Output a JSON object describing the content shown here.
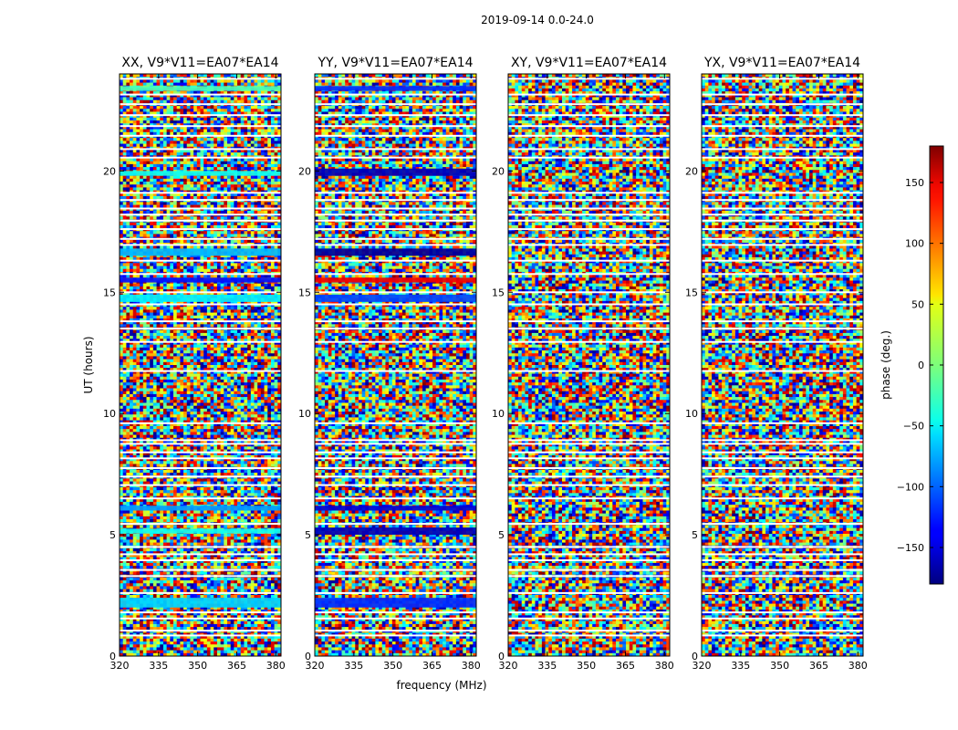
{
  "chart_data": {
    "type": "heatmap",
    "suptitle": "2019-09-14 0.0-24.0",
    "xlabel": "frequency (MHz)",
    "ylabel": "UT (hours)",
    "xlim": [
      320,
      382
    ],
    "ylim": [
      0,
      24
    ],
    "xticks": [
      "320",
      "335",
      "350",
      "365",
      "380"
    ],
    "yticks": [
      "0",
      "5",
      "10",
      "15",
      "20"
    ],
    "panels": [
      {
        "title": "XX, V9*V11=EA07*EA14",
        "bands": [
          {
            "t0": 2.0,
            "t1": 2.4,
            "phase": -60
          },
          {
            "t0": 5.05,
            "t1": 5.25,
            "phase": -40
          },
          {
            "t0": 6.0,
            "t1": 6.2,
            "phase": -80
          },
          {
            "t0": 14.6,
            "t1": 14.9,
            "phase": -50
          },
          {
            "t0": 15.4,
            "t1": 15.6,
            "phase": -130
          },
          {
            "t0": 16.5,
            "t1": 16.8,
            "phase": -70
          },
          {
            "t0": 19.8,
            "t1": 20.0,
            "phase": -40
          },
          {
            "t0": 23.3,
            "t1": 23.5,
            "phase": -20
          }
        ]
      },
      {
        "title": "YY, V9*V11=EA07*EA14",
        "bands": [
          {
            "t0": 2.0,
            "t1": 2.4,
            "phase": -120
          },
          {
            "t0": 5.0,
            "t1": 5.3,
            "phase": -160
          },
          {
            "t0": 6.0,
            "t1": 6.2,
            "phase": -150
          },
          {
            "t0": 14.6,
            "t1": 14.9,
            "phase": -110
          },
          {
            "t0": 15.4,
            "t1": 15.6,
            "phase": 140
          },
          {
            "t0": 16.5,
            "t1": 16.8,
            "phase": -170
          },
          {
            "t0": 19.8,
            "t1": 20.1,
            "phase": -160
          },
          {
            "t0": 23.3,
            "t1": 23.5,
            "phase": -120
          }
        ]
      },
      {
        "title": "XY, V9*V11=EA07*EA14",
        "bands": []
      },
      {
        "title": "YX, V9*V11=EA07*EA14",
        "bands": []
      }
    ],
    "flagged_hours": [
      0.85,
      1.05,
      1.55,
      1.8,
      2.6,
      3.3,
      3.55,
      3.95,
      4.2,
      4.5,
      5.45,
      6.5,
      7.05,
      7.4,
      7.75,
      8.15,
      8.4,
      8.75,
      8.9,
      9.6,
      11.75,
      12.95,
      13.5,
      13.8,
      14.5,
      15.0,
      15.75,
      16.3,
      16.95,
      17.2,
      17.6,
      17.95,
      18.2,
      18.45,
      18.8,
      19.1,
      20.55,
      20.9,
      21.45,
      21.85,
      22.3,
      22.75,
      23.15,
      23.8
    ],
    "colorbar": {
      "label": "phase (deg.)",
      "range": [
        -180,
        180
      ],
      "ticks": [
        "150",
        "100",
        "50",
        "0",
        "−50",
        "−100",
        "−150"
      ],
      "colormap": "jet"
    }
  }
}
